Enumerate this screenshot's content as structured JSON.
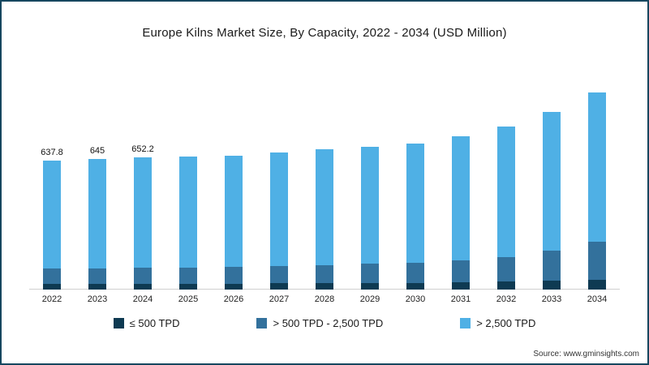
{
  "chart_data": {
    "type": "bar",
    "stacked": true,
    "title": "Europe Kilns Market Size, By Capacity, 2022 - 2034 (USD Million)",
    "xlabel": "",
    "ylabel": "",
    "ylim": [
      0,
      1080
    ],
    "grid": false,
    "legend_position": "bottom",
    "categories": [
      "2022",
      "2023",
      "2024",
      "2025",
      "2026",
      "2027",
      "2028",
      "2029",
      "2030",
      "2031",
      "2032",
      "2033",
      "2034"
    ],
    "series": [
      {
        "name": "≤ 500 TPD",
        "color": "#0e3a52",
        "values": [
          28,
          28,
          29,
          29,
          30,
          31,
          32,
          33,
          34,
          36,
          39,
          43,
          48
        ]
      },
      {
        "name": "> 500 TPD - 2,500 TPD",
        "color": "#33719c",
        "values": [
          75,
          77,
          79,
          81,
          83,
          86,
          90,
          94,
          99,
          108,
          122,
          150,
          190
        ]
      },
      {
        "name": "> 2,500 TPD",
        "color": "#4fb0e5",
        "values": [
          534.8,
          540,
          544.2,
          548,
          549,
          561,
          572,
          579,
          589,
          613,
          644,
          684,
          735
        ]
      }
    ],
    "totals": [
      637.8,
      645,
      652.2,
      658,
      662,
      678,
      694,
      706,
      722,
      757,
      805,
      877,
      973
    ],
    "value_labels": {
      "2022": "637.8",
      "2023": "645",
      "2024": "652.2"
    }
  },
  "source": {
    "text": "Source: www.gminsights.com"
  }
}
